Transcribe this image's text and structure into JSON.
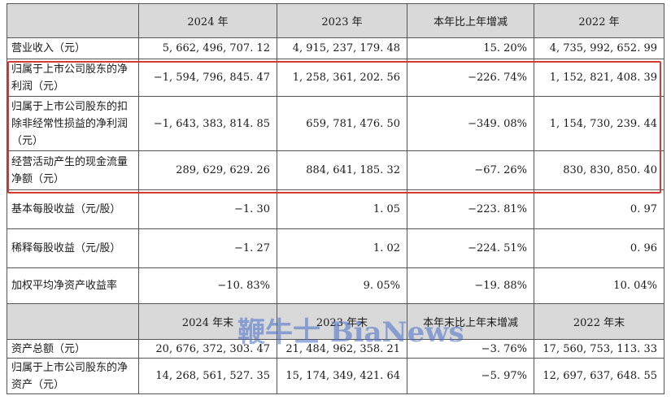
{
  "header": {
    "label": "",
    "col_2024": "2024 年",
    "col_2023": "2023 年",
    "col_change": "本年比上年增减",
    "col_2022": "2022 年"
  },
  "rows": [
    {
      "label": "营业收入（元）",
      "v2024": "5, 662, 496, 707. 12",
      "v2023": "4, 915, 237, 179. 48",
      "change": "15. 20%",
      "v2022": "4, 735, 992, 652. 99"
    },
    {
      "label": "归属于上市公司股东的净利润（元）",
      "v2024": "−1, 594, 796, 845. 47",
      "v2023": "1, 258, 361, 202. 56",
      "change": "−226. 74%",
      "v2022": "1, 152, 821, 408. 39"
    },
    {
      "label": "归属于上市公司股东的扣除非经常性损益的净利润（元）",
      "v2024": "−1, 643, 383, 814. 85",
      "v2023": "659, 781, 476. 50",
      "change": "−349. 08%",
      "v2022": "1, 154, 730, 239. 44"
    },
    {
      "label": "经营活动产生的现金流量净额（元）",
      "v2024": "289, 629, 629. 26",
      "v2023": "884, 641, 185. 32",
      "change": "−67. 26%",
      "v2022": "830, 830, 850. 40"
    },
    {
      "label": "基本每股收益（元/股）",
      "v2024": "−1. 30",
      "v2023": "1. 05",
      "change": "−223. 81%",
      "v2022": "0. 97"
    },
    {
      "label": "稀释每股收益（元/股）",
      "v2024": "−1. 27",
      "v2023": "1. 02",
      "change": "−224. 51%",
      "v2022": "0. 96"
    },
    {
      "label": "加权平均净资产收益率",
      "v2024": "−10. 83%",
      "v2023": "9. 05%",
      "change": "−19. 88%",
      "v2022": "10. 04%"
    }
  ],
  "header2": {
    "label": "",
    "col_2024": "2024 年末",
    "col_2023": "2023 年末",
    "col_change": "本年末比上年末增减",
    "col_2022": "2022 年末"
  },
  "rows2": [
    {
      "label": "资产总额（元）",
      "v2024": "20, 676, 372, 303. 47",
      "v2023": "21, 484, 962, 358. 21",
      "change": "−3. 76%",
      "v2022": "17, 560, 753, 113. 33"
    },
    {
      "label": "归属于上市公司股东的净资产（元）",
      "v2024": "14, 268, 561, 527. 35",
      "v2023": "15, 174, 349, 421. 64",
      "change": "−5. 97%",
      "v2022": "12, 697, 637, 648. 55"
    }
  ],
  "watermark": "鞭牛士 BiaNews",
  "colors": {
    "highlight_border": "#d33a32",
    "header_bg": "#d9d9d9",
    "watermark": "#466ec8"
  }
}
